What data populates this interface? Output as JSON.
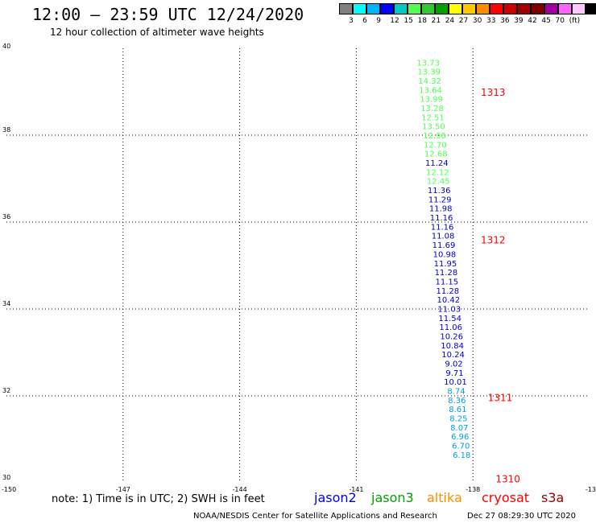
{
  "header": {
    "title": "12:00 – 23:59 UTC 12/24/2020",
    "subtitle": "12 hour collection of altimeter wave heights"
  },
  "color_scale": {
    "colors": [
      "#808080",
      "#00ffff",
      "#00b4ff",
      "#0000ff",
      "#00c8c8",
      "#50ff50",
      "#32c832",
      "#00a000",
      "#ffff00",
      "#ffc800",
      "#ff8c00",
      "#ff0000",
      "#c80000",
      "#a00000",
      "#800000",
      "#a000a0",
      "#ff64ff",
      "#ffc8ff",
      "#000000"
    ],
    "labels": [
      "3",
      "6",
      "9",
      "12",
      "15",
      "18",
      "21",
      "24",
      "27",
      "30",
      "33",
      "36",
      "39",
      "42",
      "45",
      "70",
      "(ft)"
    ]
  },
  "map": {
    "lat_labels": [
      "40",
      "38",
      "36",
      "34",
      "32",
      "30"
    ],
    "lon_labels": [
      "-150",
      "-147",
      "-144",
      "-141",
      "-138",
      "-13"
    ]
  },
  "chart_data": {
    "type": "scatter",
    "title": "12:00 – 23:59 UTC 12/24/2020",
    "subtitle": "12 hour collection of altimeter wave heights",
    "xlim": [
      -150,
      -135
    ],
    "ylim": [
      30,
      40
    ],
    "grid": true,
    "units": "ft",
    "observations": [
      {
        "lon": -139.15,
        "lat": 39.68,
        "value": "13.73",
        "color": "#50ff50"
      },
      {
        "lon": -139.13,
        "lat": 39.47,
        "value": "13.39",
        "color": "#50ff50"
      },
      {
        "lon": -139.11,
        "lat": 39.26,
        "value": "14.32",
        "color": "#50ff50"
      },
      {
        "lon": -139.09,
        "lat": 39.05,
        "value": "13.64",
        "color": "#50ff50"
      },
      {
        "lon": -139.07,
        "lat": 38.84,
        "value": "13.99",
        "color": "#50ff50"
      },
      {
        "lon": -139.05,
        "lat": 38.63,
        "value": "13.28",
        "color": "#50ff50"
      },
      {
        "lon": -139.03,
        "lat": 38.42,
        "value": "12.51",
        "color": "#50ff50"
      },
      {
        "lon": -139.01,
        "lat": 38.21,
        "value": "13.50",
        "color": "#50ff50"
      },
      {
        "lon": -138.99,
        "lat": 38.0,
        "value": "12.96",
        "color": "#50ff50"
      },
      {
        "lon": -138.97,
        "lat": 37.79,
        "value": "12.70",
        "color": "#50ff50"
      },
      {
        "lon": -138.95,
        "lat": 37.58,
        "value": "12.68",
        "color": "#50ff50"
      },
      {
        "lon": -138.93,
        "lat": 37.37,
        "value": "11.24",
        "color": "#0000c8"
      },
      {
        "lon": -138.91,
        "lat": 37.16,
        "value": "12.12",
        "color": "#50ff50"
      },
      {
        "lon": -138.89,
        "lat": 36.95,
        "value": "12.45",
        "color": "#50ff50"
      },
      {
        "lon": -138.87,
        "lat": 36.74,
        "value": "11.36",
        "color": "#0000c8"
      },
      {
        "lon": -138.85,
        "lat": 36.53,
        "value": "11.29",
        "color": "#0000c8"
      },
      {
        "lon": -138.83,
        "lat": 36.32,
        "value": "11.98",
        "color": "#0000c8"
      },
      {
        "lon": -138.81,
        "lat": 36.11,
        "value": "11.16",
        "color": "#0000c8"
      },
      {
        "lon": -138.79,
        "lat": 35.9,
        "value": "11.16",
        "color": "#0000c8"
      },
      {
        "lon": -138.77,
        "lat": 35.69,
        "value": "11.08",
        "color": "#0000c8"
      },
      {
        "lon": -138.75,
        "lat": 35.48,
        "value": "11.69",
        "color": "#0000c8"
      },
      {
        "lon": -138.73,
        "lat": 35.27,
        "value": "10.98",
        "color": "#0000c8"
      },
      {
        "lon": -138.71,
        "lat": 35.06,
        "value": "11.95",
        "color": "#0000c8"
      },
      {
        "lon": -138.69,
        "lat": 34.85,
        "value": "11.28",
        "color": "#0000c8"
      },
      {
        "lon": -138.67,
        "lat": 34.64,
        "value": "11.15",
        "color": "#0000c8"
      },
      {
        "lon": -138.65,
        "lat": 34.43,
        "value": "11.28",
        "color": "#0000c8"
      },
      {
        "lon": -138.63,
        "lat": 34.22,
        "value": "10.42",
        "color": "#0000c8"
      },
      {
        "lon": -138.61,
        "lat": 34.01,
        "value": "11.03",
        "color": "#0000c8"
      },
      {
        "lon": -138.59,
        "lat": 33.8,
        "value": "11.54",
        "color": "#0000c8"
      },
      {
        "lon": -138.57,
        "lat": 33.59,
        "value": "11.06",
        "color": "#0000c8"
      },
      {
        "lon": -138.55,
        "lat": 33.38,
        "value": "10.26",
        "color": "#0000c8"
      },
      {
        "lon": -138.53,
        "lat": 33.17,
        "value": "10.84",
        "color": "#0000c8"
      },
      {
        "lon": -138.51,
        "lat": 32.96,
        "value": "10.24",
        "color": "#0000c8"
      },
      {
        "lon": -138.49,
        "lat": 32.75,
        "value": "9.02",
        "color": "#0000c8"
      },
      {
        "lon": -138.47,
        "lat": 32.54,
        "value": "9.71",
        "color": "#0000c8"
      },
      {
        "lon": -138.45,
        "lat": 32.33,
        "value": "10.01",
        "color": "#0000c8"
      },
      {
        "lon": -138.43,
        "lat": 32.12,
        "value": "8.74",
        "color": "#00a0dc"
      },
      {
        "lon": -138.41,
        "lat": 31.91,
        "value": "8.36",
        "color": "#00a0dc"
      },
      {
        "lon": -138.39,
        "lat": 31.7,
        "value": "8.61",
        "color": "#00a0dc"
      },
      {
        "lon": -138.37,
        "lat": 31.49,
        "value": "8.25",
        "color": "#00a0dc"
      },
      {
        "lon": -138.35,
        "lat": 31.28,
        "value": "8.07",
        "color": "#00a0dc"
      },
      {
        "lon": -138.33,
        "lat": 31.07,
        "value": "6.96",
        "color": "#00a0dc"
      },
      {
        "lon": -138.31,
        "lat": 30.86,
        "value": "6.70",
        "color": "#00a0dc"
      },
      {
        "lon": -138.29,
        "lat": 30.65,
        "value": "6.18",
        "color": "#00a0dc"
      }
    ],
    "pass_labels": [
      {
        "lon": -137.48,
        "lat": 39.0,
        "text": "1313"
      },
      {
        "lon": -137.48,
        "lat": 35.6,
        "text": "1312"
      },
      {
        "lon": -137.3,
        "lat": 31.97,
        "text": "1311"
      },
      {
        "lon": -137.1,
        "lat": 30.1,
        "text": "1310"
      }
    ]
  },
  "footer": {
    "note": "note: 1) Time is in UTC; 2) SWH is in feet",
    "legend": [
      {
        "name": "jason2",
        "color": "#0000ff"
      },
      {
        "name": "jason3",
        "color": "#00a000"
      },
      {
        "name": "altika",
        "color": "#ff8c00"
      },
      {
        "name": "cryosat",
        "color": "#ff0000"
      },
      {
        "name": "s3a",
        "color": "#a00000"
      }
    ],
    "credit": "NOAA/NESDIS Center for Satellite Applications and Research",
    "timestamp": "Dec 27 08:29:30 UTC 2020"
  }
}
